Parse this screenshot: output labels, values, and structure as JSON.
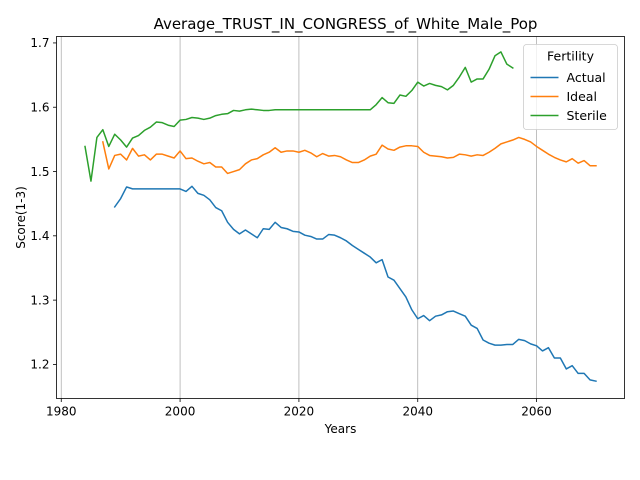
{
  "chart_data": {
    "type": "line",
    "title": "Average_TRUST_IN_CONGRESS_of_White_Male_Pop",
    "xlabel": "Years",
    "ylabel": "Score(1-3)",
    "xlim": [
      1979.2,
      2074.8
    ],
    "ylim": [
      1.147,
      1.71
    ],
    "xticks": [
      1980,
      2000,
      2020,
      2040,
      2060
    ],
    "yticks": [
      1.2,
      1.3,
      1.4,
      1.5,
      1.6,
      1.7
    ],
    "xtick_labels": [
      "1980",
      "2000",
      "2020",
      "2040",
      "2060"
    ],
    "ytick_labels": [
      "1.2",
      "1.3",
      "1.4",
      "1.5",
      "1.6",
      "1.7"
    ],
    "grid": "x-only",
    "legend": {
      "title": "Fertility",
      "placement": "top-right"
    },
    "series": [
      {
        "name": "Actual",
        "color": "#1f77b4",
        "x": [
          1989,
          1990,
          1991,
          1992,
          1993,
          1994,
          1995,
          1996,
          1997,
          1998,
          1999,
          2000,
          2001,
          2002,
          2003,
          2004,
          2005,
          2006,
          2007,
          2008,
          2009,
          2010,
          2011,
          2012,
          2013,
          2014,
          2015,
          2016,
          2017,
          2018,
          2019,
          2020,
          2021,
          2022,
          2023,
          2024,
          2025,
          2026,
          2027,
          2028,
          2029,
          2030,
          2031,
          2032,
          2033,
          2034,
          2035,
          2036,
          2037,
          2038,
          2039,
          2040,
          2041,
          2042,
          2043,
          2044,
          2045,
          2046,
          2047,
          2048,
          2049,
          2050,
          2051,
          2052,
          2053,
          2054,
          2055,
          2056,
          2057,
          2058,
          2059,
          2060,
          2061,
          2062,
          2063,
          2064,
          2065,
          2066,
          2067,
          2068,
          2069,
          2070
        ],
        "values": [
          1.445,
          1.458,
          1.476,
          1.473,
          1.473,
          1.473,
          1.473,
          1.473,
          1.473,
          1.473,
          1.473,
          1.473,
          1.469,
          1.477,
          1.466,
          1.463,
          1.456,
          1.444,
          1.439,
          1.421,
          1.41,
          1.403,
          1.409,
          1.403,
          1.397,
          1.411,
          1.41,
          1.421,
          1.413,
          1.411,
          1.407,
          1.406,
          1.401,
          1.399,
          1.395,
          1.395,
          1.402,
          1.401,
          1.397,
          1.392,
          1.385,
          1.379,
          1.373,
          1.367,
          1.358,
          1.363,
          1.336,
          1.331,
          1.318,
          1.305,
          1.285,
          1.271,
          1.276,
          1.268,
          1.275,
          1.277,
          1.282,
          1.283,
          1.279,
          1.275,
          1.261,
          1.256,
          1.238,
          1.233,
          1.23,
          1.23,
          1.231,
          1.231,
          1.239,
          1.237,
          1.232,
          1.229,
          1.221,
          1.226,
          1.21,
          1.21,
          1.193,
          1.198,
          1.186,
          1.186,
          1.176,
          1.174
        ]
      },
      {
        "name": "Ideal",
        "color": "#ff7f0e",
        "x": [
          1987,
          1988,
          1989,
          1990,
          1991,
          1992,
          1993,
          1994,
          1995,
          1996,
          1997,
          1998,
          1999,
          2000,
          2001,
          2002,
          2003,
          2004,
          2005,
          2006,
          2007,
          2008,
          2009,
          2010,
          2011,
          2012,
          2013,
          2014,
          2015,
          2016,
          2017,
          2018,
          2019,
          2020,
          2021,
          2022,
          2023,
          2024,
          2025,
          2026,
          2027,
          2028,
          2029,
          2030,
          2031,
          2032,
          2033,
          2034,
          2035,
          2036,
          2037,
          2038,
          2039,
          2040,
          2041,
          2042,
          2043,
          2044,
          2045,
          2046,
          2047,
          2048,
          2049,
          2050,
          2051,
          2052,
          2053,
          2054,
          2055,
          2056,
          2057,
          2058,
          2059,
          2060,
          2061,
          2062,
          2063,
          2064,
          2065,
          2066,
          2067,
          2068,
          2069,
          2070
        ],
        "values": [
          1.546,
          1.504,
          1.525,
          1.527,
          1.518,
          1.536,
          1.524,
          1.526,
          1.518,
          1.527,
          1.527,
          1.524,
          1.521,
          1.532,
          1.52,
          1.521,
          1.516,
          1.512,
          1.514,
          1.507,
          1.507,
          1.497,
          1.5,
          1.503,
          1.512,
          1.518,
          1.52,
          1.526,
          1.53,
          1.537,
          1.53,
          1.532,
          1.532,
          1.53,
          1.533,
          1.529,
          1.523,
          1.528,
          1.524,
          1.525,
          1.523,
          1.518,
          1.514,
          1.514,
          1.518,
          1.524,
          1.527,
          1.541,
          1.535,
          1.533,
          1.538,
          1.54,
          1.54,
          1.539,
          1.53,
          1.525,
          1.524,
          1.523,
          1.521,
          1.522,
          1.527,
          1.526,
          1.524,
          1.526,
          1.525,
          1.53,
          1.536,
          1.543,
          1.546,
          1.549,
          1.553,
          1.55,
          1.546,
          1.539,
          1.533,
          1.527,
          1.522,
          1.518,
          1.515,
          1.52,
          1.513,
          1.517,
          1.509,
          1.509
        ]
      },
      {
        "name": "Sterile",
        "color": "#2ca02c",
        "x": [
          1984,
          1985,
          1986,
          1987,
          1988,
          1989,
          1990,
          1991,
          1992,
          1993,
          1994,
          1995,
          1996,
          1997,
          1998,
          1999,
          2000,
          2001,
          2002,
          2003,
          2004,
          2005,
          2006,
          2007,
          2008,
          2009,
          2010,
          2011,
          2012,
          2013,
          2014,
          2015,
          2016,
          2017,
          2018,
          2019,
          2020,
          2021,
          2022,
          2023,
          2024,
          2025,
          2026,
          2027,
          2028,
          2029,
          2030,
          2031,
          2032,
          2033,
          2034,
          2035,
          2036,
          2037,
          2038,
          2039,
          2040,
          2041,
          2042,
          2043,
          2044,
          2045,
          2046,
          2047,
          2048,
          2049,
          2050,
          2051,
          2052,
          2053,
          2054,
          2055,
          2056
        ],
        "values": [
          1.539,
          1.485,
          1.553,
          1.565,
          1.539,
          1.558,
          1.549,
          1.538,
          1.552,
          1.556,
          1.564,
          1.569,
          1.577,
          1.576,
          1.572,
          1.57,
          1.58,
          1.581,
          1.584,
          1.583,
          1.581,
          1.583,
          1.587,
          1.589,
          1.59,
          1.595,
          1.594,
          1.596,
          1.597,
          1.596,
          1.595,
          1.595,
          1.596,
          1.596,
          1.596,
          1.596,
          1.596,
          1.596,
          1.596,
          1.596,
          1.596,
          1.596,
          1.596,
          1.596,
          1.596,
          1.596,
          1.596,
          1.596,
          1.596,
          1.604,
          1.615,
          1.607,
          1.606,
          1.619,
          1.617,
          1.626,
          1.639,
          1.633,
          1.637,
          1.634,
          1.632,
          1.627,
          1.634,
          1.647,
          1.662,
          1.639,
          1.644,
          1.644,
          1.659,
          1.68,
          1.686,
          1.667,
          1.661
        ]
      }
    ]
  }
}
